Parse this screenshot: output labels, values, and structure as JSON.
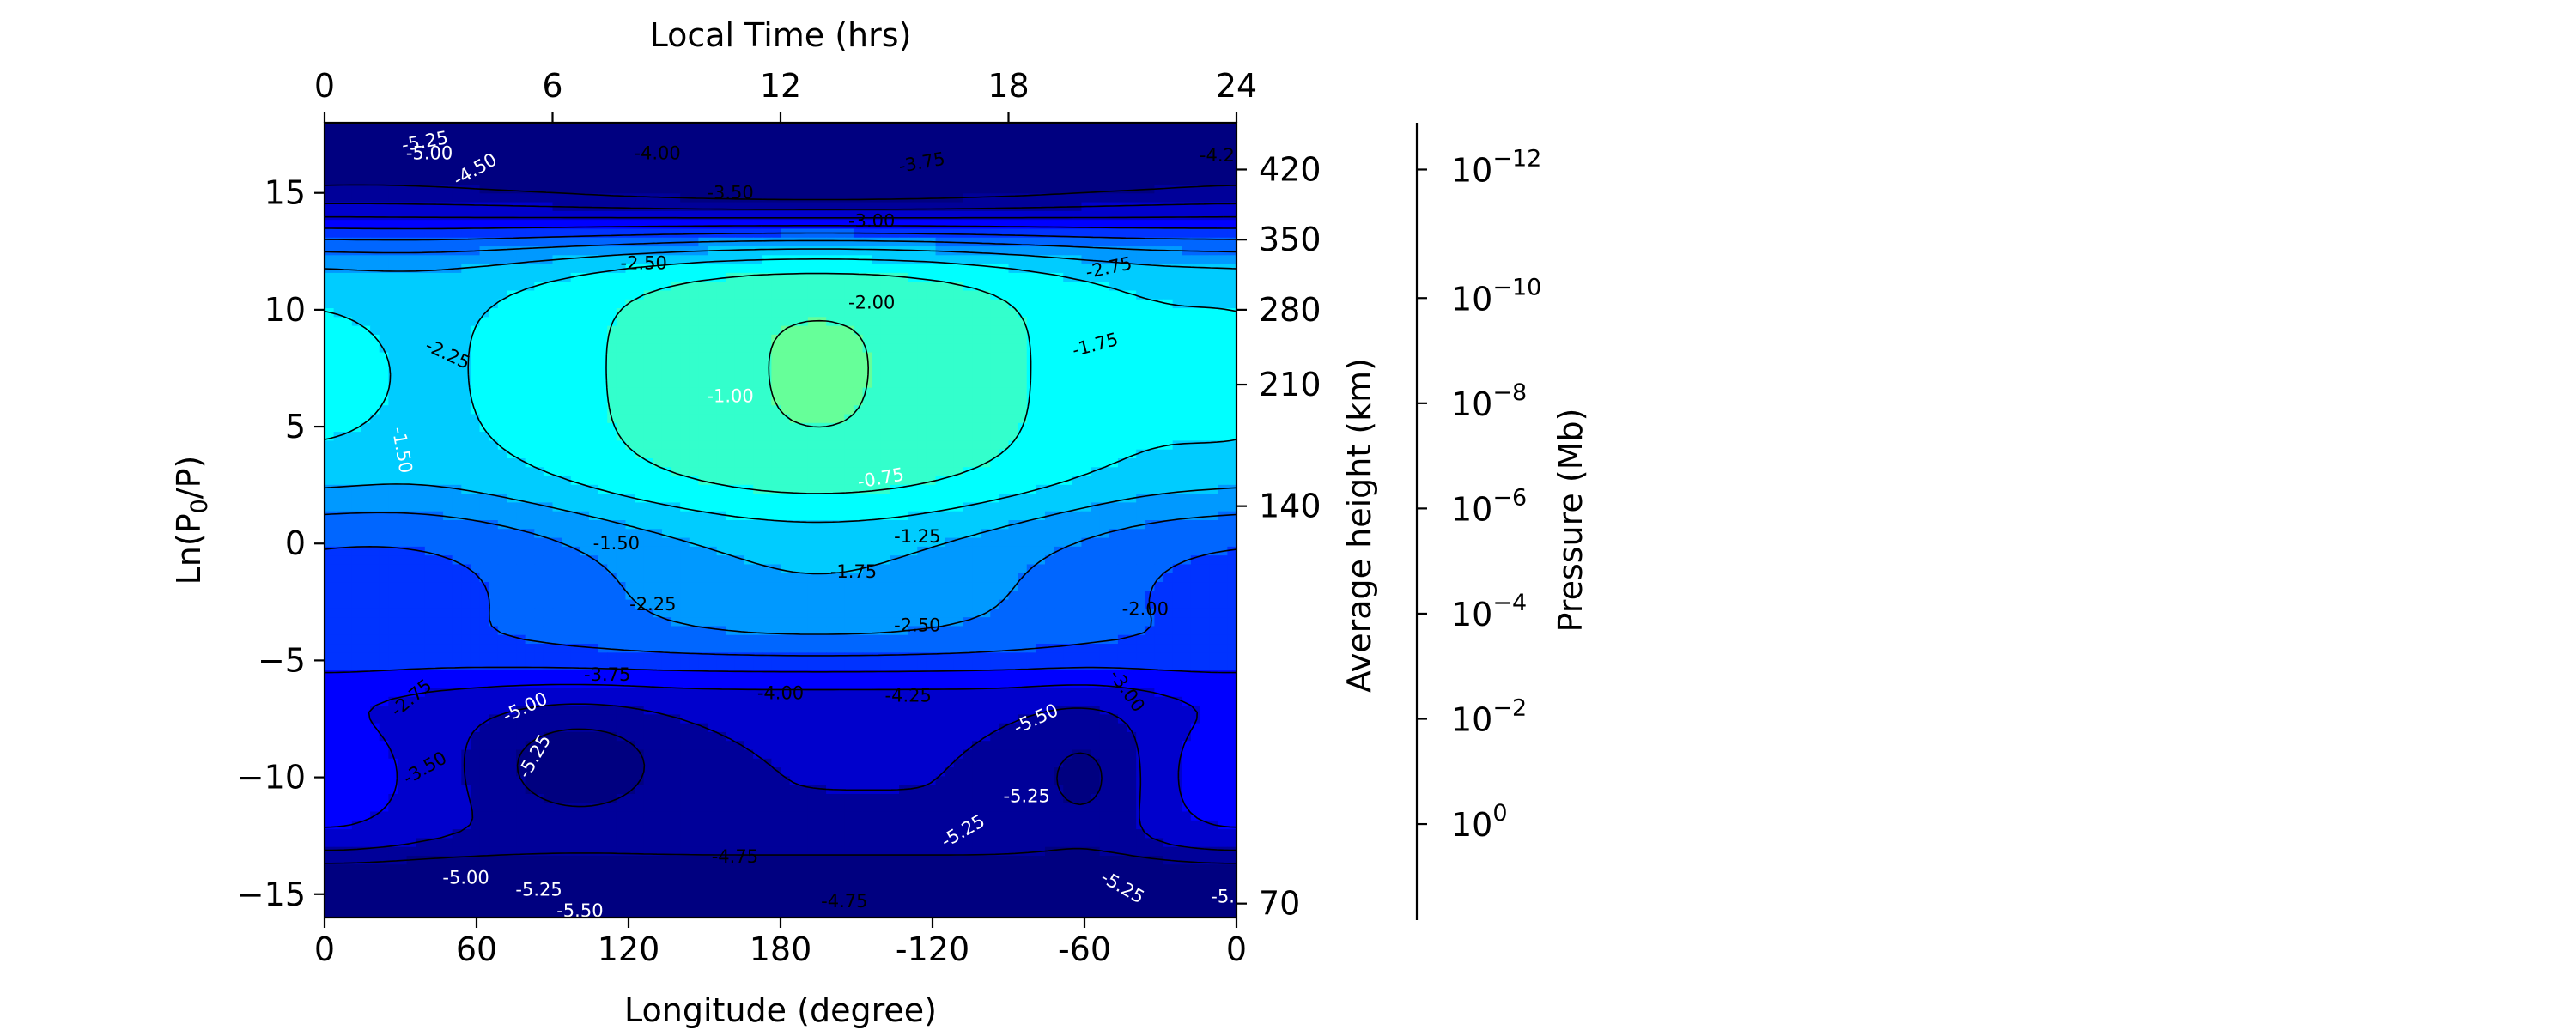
{
  "chart_data": {
    "type": "heatmap",
    "subtype": "filled-contour",
    "xlabel_bottom": "Longitude (degree)",
    "xlabel_top": "Local Time (hrs)",
    "ylabel_left": "Ln(P",
    "ylabel_left_sub": "0",
    "ylabel_left_tail": "/P)",
    "ylabel_right": "Average height (km)",
    "ylabel_far_right": "Pressure (Mb)",
    "x_ticks_bottom": [
      "0",
      "60",
      "120",
      "180",
      "-120",
      "-60",
      "0"
    ],
    "x_ticks_top": [
      "0",
      "6",
      "12",
      "18",
      "24"
    ],
    "y_ticks_left": [
      "15",
      "10",
      "5",
      "0",
      "−5",
      "−10",
      "−15"
    ],
    "y_ticks_right": [
      "420",
      "350",
      "280",
      "210",
      "140",
      "70"
    ],
    "pressure_ticks": [
      {
        "base": "10",
        "exp": "−12"
      },
      {
        "base": "10",
        "exp": "−10"
      },
      {
        "base": "10",
        "exp": "−8"
      },
      {
        "base": "10",
        "exp": "−6"
      },
      {
        "base": "10",
        "exp": "−4"
      },
      {
        "base": "10",
        "exp": "−2"
      },
      {
        "base": "10",
        "exp": "0"
      }
    ],
    "xlim_local_time": [
      0,
      24
    ],
    "ylim": [
      -16,
      18
    ],
    "contour_levels": [
      -5.5,
      -5.25,
      -5.0,
      -4.75,
      -4.5,
      -4.25,
      -4.0,
      -3.75,
      -3.5,
      -3.25,
      -3.0,
      -2.75,
      -2.5,
      -2.25,
      -2.0,
      -1.75,
      -1.5,
      -1.25,
      -1.0,
      -0.75
    ],
    "contour_labels": [
      "-5.25",
      "-5.00",
      "-4.50",
      "-4.00",
      "-3.75",
      "-3.50",
      "-4.25",
      "-3.00",
      "-2.50",
      "-2.75",
      "-2.00",
      "-2.25",
      "-1.75",
      "-1.00",
      "-1.50",
      "-0.75",
      "-1.25",
      "-1.50",
      "-1.75",
      "-2.25",
      "-2.50",
      "-2.00",
      "-3.75",
      "-4.00",
      "-4.25",
      "-2.75",
      "-3.00",
      "-5.00",
      "-5.25",
      "-3.50",
      "-5.50",
      "-5.25",
      "-5.25",
      "-4.75",
      "-5.00",
      "-5.25",
      "-5.50",
      "-4.75",
      "-5.25",
      "-5."
    ]
  }
}
